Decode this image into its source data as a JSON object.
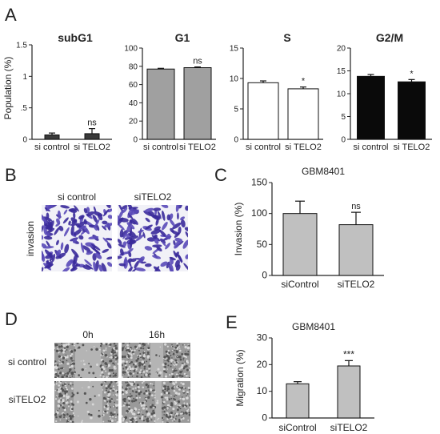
{
  "panel_letters": [
    "A",
    "B",
    "C",
    "D",
    "E"
  ],
  "panel_a": {
    "y_label": "Population (%)",
    "charts": [
      {
        "type": "bar",
        "title": "subG1",
        "categories": [
          "si control",
          "si TELO2"
        ],
        "values": [
          0.07,
          0.09
        ],
        "errors": [
          0.03,
          0.08
        ],
        "ylim": [
          0,
          1.5
        ],
        "ticks": [
          0,
          0.5,
          1,
          1.5
        ],
        "tick_labels": [
          "0",
          ".5",
          "1",
          "1.5"
        ],
        "bar_color": "#3a3a3a",
        "annotation": "ns"
      },
      {
        "type": "bar",
        "title": "G1",
        "categories": [
          "si control",
          "si TELO2"
        ],
        "values": [
          77,
          78.5
        ],
        "errors": [
          0.8,
          0.8
        ],
        "ylim": [
          0,
          100
        ],
        "ticks": [
          0,
          20,
          40,
          60,
          80,
          100
        ],
        "tick_labels": [
          "0",
          "20",
          "40",
          "60",
          "80",
          "100"
        ],
        "bar_color": "#a0a0a0",
        "annotation": "ns"
      },
      {
        "type": "bar",
        "title": "S",
        "categories": [
          "si control",
          "si TELO2"
        ],
        "values": [
          9.3,
          8.3
        ],
        "errors": [
          0.3,
          0.3
        ],
        "ylim": [
          0,
          15
        ],
        "ticks": [
          0,
          5,
          10,
          15
        ],
        "tick_labels": [
          "0",
          "5",
          "10",
          "15"
        ],
        "bar_color": "#ffffff",
        "annotation": "*"
      },
      {
        "type": "bar",
        "title": "G2/M",
        "categories": [
          "si control",
          "si TELO2"
        ],
        "values": [
          13.8,
          12.6
        ],
        "errors": [
          0.4,
          0.5
        ],
        "ylim": [
          0,
          20
        ],
        "ticks": [
          0,
          5,
          10,
          15,
          20
        ],
        "tick_labels": [
          "0",
          "5",
          "10",
          "15",
          "20"
        ],
        "bar_color": "#0a0a0a",
        "annotation": "*"
      }
    ]
  },
  "panel_b": {
    "col_labels": [
      "si control",
      "siTELO2"
    ],
    "row_label": "invasion"
  },
  "panel_c": {
    "type": "bar",
    "title": "GBM8401",
    "ylabel": "Invasion (%)",
    "categories": [
      "siControl",
      "siTELO2"
    ],
    "values": [
      100,
      82
    ],
    "errors": [
      20,
      20
    ],
    "ylim": [
      0,
      150
    ],
    "ticks": [
      0,
      50,
      100,
      150
    ],
    "tick_labels": [
      "0",
      "50",
      "100",
      "150"
    ],
    "bar_color": "#c0c0c0",
    "annotation": "ns"
  },
  "panel_d": {
    "col_labels": [
      "0h",
      "16h"
    ],
    "row_labels": [
      "si control",
      "siTELO2"
    ]
  },
  "panel_e": {
    "type": "bar",
    "title": "GBM8401",
    "ylabel": "Migration (%)",
    "categories": [
      "siControl",
      "siTELO2"
    ],
    "values": [
      12.8,
      19.5
    ],
    "errors": [
      0.8,
      2
    ],
    "ylim": [
      0,
      30
    ],
    "ticks": [
      0,
      10,
      20,
      30
    ],
    "tick_labels": [
      "0",
      "10",
      "20",
      "30"
    ],
    "bar_color": "#c0c0c0",
    "annotation": "***"
  }
}
